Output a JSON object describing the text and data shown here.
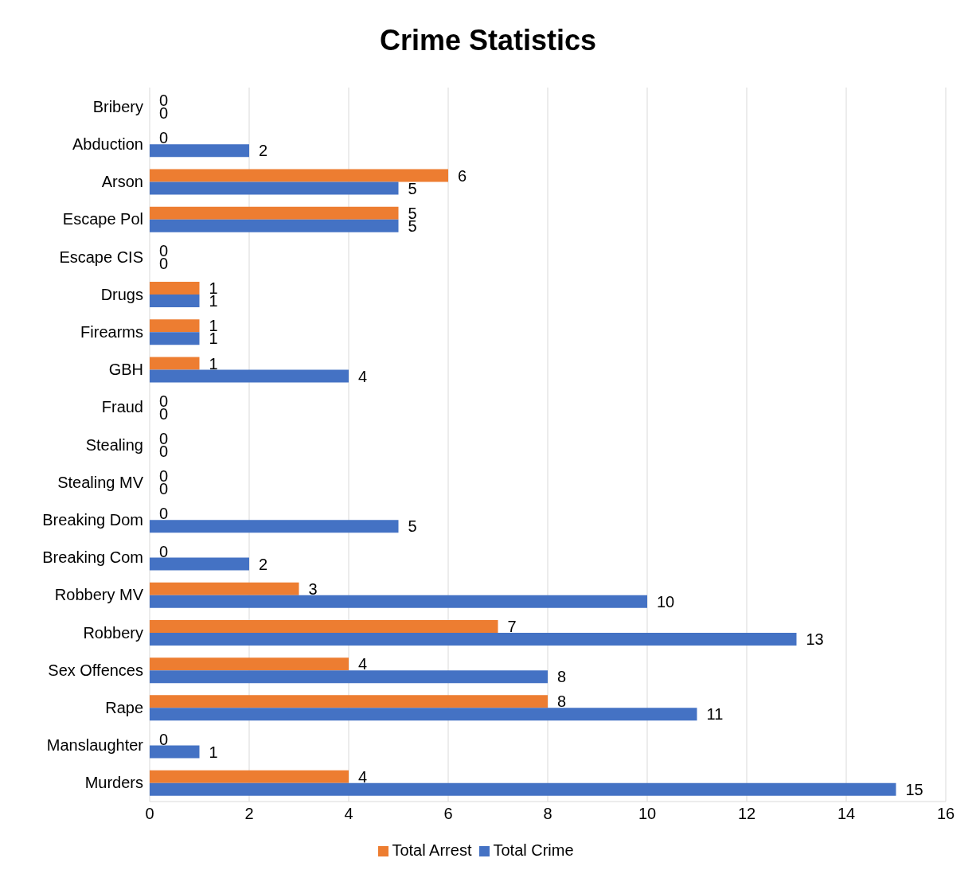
{
  "chart_data": {
    "type": "bar",
    "orientation": "horizontal",
    "title": "Crime Statistics",
    "categories": [
      "Bribery",
      "Abduction",
      "Arson",
      "Escape Pol",
      "Escape CIS",
      "Drugs",
      "Firearms",
      "GBH",
      "Fraud",
      "Stealing",
      "Stealing MV",
      "Breaking Dom",
      "Breaking Com",
      "Robbery MV",
      "Robbery",
      "Sex Offences",
      "Rape",
      "Manslaughter",
      "Murders"
    ],
    "series": [
      {
        "name": "Total Arrest",
        "color": "#ed7d31",
        "values": [
          0,
          0,
          6,
          5,
          0,
          1,
          1,
          1,
          0,
          0,
          0,
          0,
          0,
          3,
          7,
          4,
          8,
          0,
          4
        ]
      },
      {
        "name": "Total Crime",
        "color": "#4472c4",
        "values": [
          0,
          2,
          5,
          5,
          0,
          1,
          1,
          4,
          0,
          0,
          0,
          5,
          2,
          10,
          13,
          8,
          11,
          1,
          15
        ]
      }
    ],
    "xlim": [
      0,
      16
    ],
    "xticks": [
      0,
      2,
      4,
      6,
      8,
      10,
      12,
      14,
      16
    ],
    "grid": "x",
    "legend": "bottom",
    "data_labels": true
  }
}
